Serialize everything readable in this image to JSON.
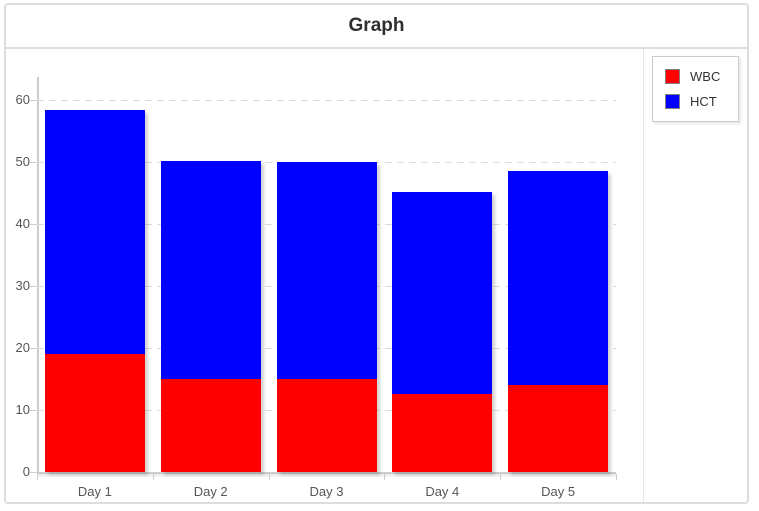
{
  "title": "Graph",
  "chart_data": {
    "type": "bar",
    "stacked": true,
    "orientation": "vertical",
    "categories": [
      "Day 1",
      "Day 2",
      "Day 3",
      "Day 4",
      "Day 5"
    ],
    "series": [
      {
        "name": "WBC",
        "color": "#ff0000",
        "values": [
          19,
          15,
          15,
          12.5,
          14
        ]
      },
      {
        "name": "HCT",
        "color": "#0000ff",
        "values": [
          39.4,
          35.2,
          35,
          32.6,
          34.5
        ]
      }
    ],
    "stack_totals": [
      58.4,
      50.2,
      50,
      45.1,
      48.5
    ],
    "ylim": [
      0,
      60
    ],
    "yticks": [
      0,
      10,
      20,
      30,
      40,
      50,
      60
    ],
    "grid": "dashed horizontal lines",
    "legend_position": "top-right",
    "xlabel": "",
    "ylabel": ""
  },
  "colors": {
    "wbc": "#ff0000",
    "hct": "#0000ff",
    "axis": "#cccccc",
    "gridline": "#dcdcdc",
    "tick_label": "#555555",
    "panel_border": "#dddddd",
    "title_text": "#2f2f2f"
  }
}
